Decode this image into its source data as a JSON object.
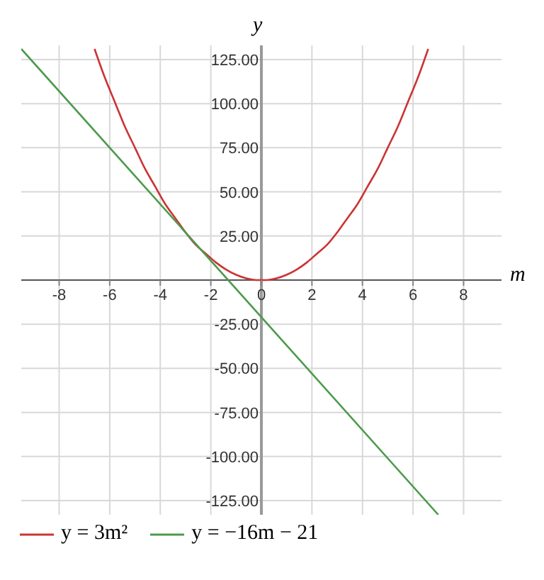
{
  "chart_data": {
    "type": "line",
    "xlabel": "m",
    "ylabel": "y",
    "xlim": [
      -9.5,
      9.5
    ],
    "ylim": [
      -133,
      133
    ],
    "xticks": [
      -8,
      -6,
      -4,
      -2,
      0,
      2,
      4,
      6,
      8
    ],
    "yticks": [
      {
        "value": -125,
        "label": "-125.00"
      },
      {
        "value": -100,
        "label": "-100.00"
      },
      {
        "value": -75,
        "label": "-75.00"
      },
      {
        "value": -50,
        "label": "-50.00"
      },
      {
        "value": -25,
        "label": "-25.00"
      },
      {
        "value": 25,
        "label": "25.00"
      },
      {
        "value": 50,
        "label": "50.00"
      },
      {
        "value": 75,
        "label": "75.00"
      },
      {
        "value": 100,
        "label": "100.00"
      },
      {
        "value": 125,
        "label": "125.00"
      }
    ],
    "grid": true,
    "legend": "bottom",
    "marker": "none",
    "line_style": "solid",
    "series": [
      {
        "name": "y = 3m²",
        "color": "#cc3333",
        "x": [
          -6.6,
          -6.2,
          -5.8,
          -5.4,
          -5,
          -4.6,
          -4.2,
          -3.8,
          -3.4,
          -3,
          -2.6,
          -2.2,
          -1.8,
          -1.4,
          -1,
          -0.6,
          -0.2,
          0,
          0.2,
          0.6,
          1,
          1.4,
          1.8,
          2.2,
          2.6,
          3,
          3.4,
          3.8,
          4.2,
          4.6,
          5,
          5.4,
          5.8,
          6.2,
          6.6
        ],
        "values": [
          131,
          115,
          101,
          87,
          75,
          63,
          53,
          43,
          35,
          27,
          20,
          15,
          10,
          6,
          3,
          1,
          0,
          0,
          0,
          1,
          3,
          6,
          10,
          15,
          20,
          27,
          35,
          43,
          53,
          63,
          75,
          87,
          101,
          115,
          131
        ]
      },
      {
        "name": "y = −16m − 21",
        "color": "#4c9a4c",
        "x": [
          -9.5,
          7
        ],
        "values": [
          131,
          -133
        ]
      }
    ]
  }
}
